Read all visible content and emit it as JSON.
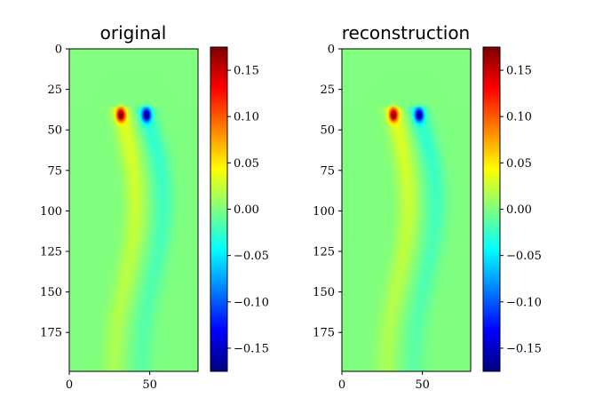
{
  "chart_data": [
    {
      "type": "heatmap",
      "title": "original",
      "xlim": [
        0,
        80
      ],
      "ylim": [
        199,
        0
      ],
      "x_ticks": [
        "0",
        "50"
      ],
      "x_tick_values": [
        0,
        50
      ],
      "y_ticks": [
        "0",
        "25",
        "50",
        "75",
        "100",
        "125",
        "150",
        "175"
      ],
      "y_tick_values": [
        0,
        25,
        50,
        75,
        100,
        125,
        150,
        175
      ],
      "colormap": "jet",
      "vmin": -0.175,
      "vmax": 0.175,
      "colorbar_ticks": [
        "0.15",
        "0.10",
        "0.05",
        "0.00",
        "−0.05",
        "−0.10",
        "−0.15"
      ],
      "colorbar_tick_values": [
        0.15,
        0.1,
        0.05,
        0.0,
        -0.05,
        -0.1,
        -0.15
      ],
      "background_value": 0.0,
      "features": {
        "left_tip": {
          "x": 32,
          "y": 39,
          "value": 0.17
        },
        "right_tip": {
          "x": 48,
          "y": 39,
          "value": -0.17
        },
        "left_band_value": 0.035,
        "right_band_value": -0.03
      }
    },
    {
      "type": "heatmap",
      "title": "reconstruction",
      "xlim": [
        0,
        80
      ],
      "ylim": [
        199,
        0
      ],
      "x_ticks": [
        "0",
        "50"
      ],
      "x_tick_values": [
        0,
        50
      ],
      "y_ticks": [
        "0",
        "25",
        "50",
        "75",
        "100",
        "125",
        "150",
        "175"
      ],
      "y_tick_values": [
        0,
        25,
        50,
        75,
        100,
        125,
        150,
        175
      ],
      "colormap": "jet",
      "vmin": -0.175,
      "vmax": 0.175,
      "colorbar_ticks": [
        "0.15",
        "0.10",
        "0.05",
        "0.00",
        "−0.05",
        "−0.10",
        "−0.15"
      ],
      "colorbar_tick_values": [
        0.15,
        0.1,
        0.05,
        0.0,
        -0.05,
        -0.1,
        -0.15
      ],
      "background_value": 0.0,
      "features": {
        "left_tip": {
          "x": 32,
          "y": 39,
          "value": 0.16
        },
        "right_tip": {
          "x": 48,
          "y": 39,
          "value": -0.16
        },
        "left_band_value": 0.035,
        "right_band_value": -0.03
      }
    }
  ]
}
